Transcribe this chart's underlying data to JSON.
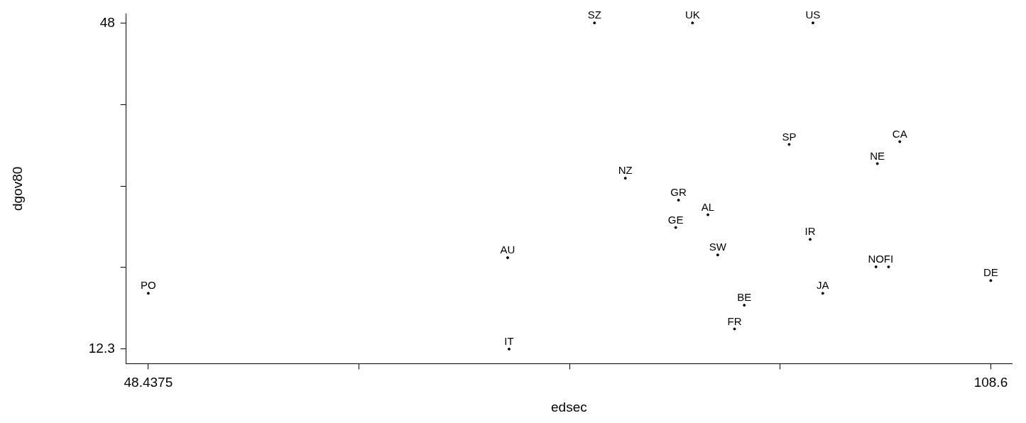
{
  "chart_data": {
    "type": "scatter",
    "xlabel": "edsec",
    "ylabel": "dgov80",
    "marker": "circle",
    "legend": false,
    "grid": false,
    "xlim": [
      46.86,
      110.1
    ],
    "xticks": [
      48.4375,
      {
        "value": 63.478125,
        "label": null
      },
      {
        "value": 78.51875,
        "label": null
      },
      {
        "value": 93.559375,
        "label": null
      },
      108.6
    ],
    "ylim": [
      10.7,
      49
    ],
    "yticks": [
      12.3,
      {
        "value": 21.225,
        "label": null
      },
      {
        "value": 30.15,
        "label": null
      },
      {
        "value": 39.075,
        "label": null
      },
      48
    ],
    "series": [
      {
        "color": "#000000",
        "x": [
          80.3,
          87.3,
          95.9,
          94.2,
          102.1,
          100.5,
          82.5,
          86.3,
          88.4,
          86.1,
          95.7,
          74.1,
          89.1,
          100.4,
          101.3,
          108.6,
          48.4375,
          96.6,
          91.0,
          90.3,
          74.2
        ],
        "values": [
          48,
          48,
          48,
          34.7,
          35.0,
          32.6,
          31.0,
          28.6,
          27.0,
          25.6,
          24.3,
          22.3,
          22.6,
          21.3,
          21.3,
          19.8,
          18.4,
          18.4,
          17.1,
          14.5,
          12.3
        ],
        "value_labels": [
          "SZ",
          "UK",
          "US",
          "SP",
          "CA",
          "NE",
          "NZ",
          "GR",
          "AL",
          "GE",
          "IR",
          "AU",
          "SW",
          "NO",
          "FI",
          "DE",
          "PO",
          "JA",
          "BE",
          "FR",
          "IT"
        ]
      }
    ]
  }
}
